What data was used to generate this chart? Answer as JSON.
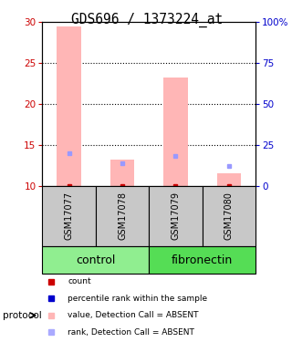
{
  "title": "GDS696 / 1373224_at",
  "samples": [
    "GSM17077",
    "GSM17078",
    "GSM17079",
    "GSM17080"
  ],
  "ylim_left": [
    10,
    30
  ],
  "ylim_right": [
    0,
    100
  ],
  "yticks_left": [
    10,
    15,
    20,
    25,
    30
  ],
  "yticks_right": [
    0,
    25,
    50,
    75,
    100
  ],
  "ytick_labels_right": [
    "0",
    "25",
    "50",
    "75",
    "100%"
  ],
  "pink_bar_bottoms": [
    10,
    10,
    10,
    10
  ],
  "pink_bar_tops": [
    29.5,
    13.2,
    23.2,
    11.5
  ],
  "blue_marker_values": [
    14.0,
    12.8,
    13.7,
    12.4
  ],
  "pink_bar_color": "#FFB6B6",
  "blue_marker_color": "#9999FF",
  "red_marker_color": "#CC0000",
  "red_dot_values": [
    10.0,
    10.0,
    10.0,
    10.0
  ],
  "control_group_color": "#90EE90",
  "fibronectin_group_color": "#55DD55",
  "sample_box_color": "#C8C8C8",
  "left_axis_color": "#CC0000",
  "right_axis_color": "#0000CC",
  "legend_items": [
    {
      "label": "count",
      "color": "#CC0000"
    },
    {
      "label": "percentile rank within the sample",
      "color": "#0000CC"
    },
    {
      "label": "value, Detection Call = ABSENT",
      "color": "#FFB6B6"
    },
    {
      "label": "rank, Detection Call = ABSENT",
      "color": "#AAAAFF"
    }
  ],
  "protocol_label": "protocol",
  "group_label_fontsize": 9,
  "sample_fontsize": 7,
  "title_fontsize": 10.5,
  "bar_width": 0.45
}
